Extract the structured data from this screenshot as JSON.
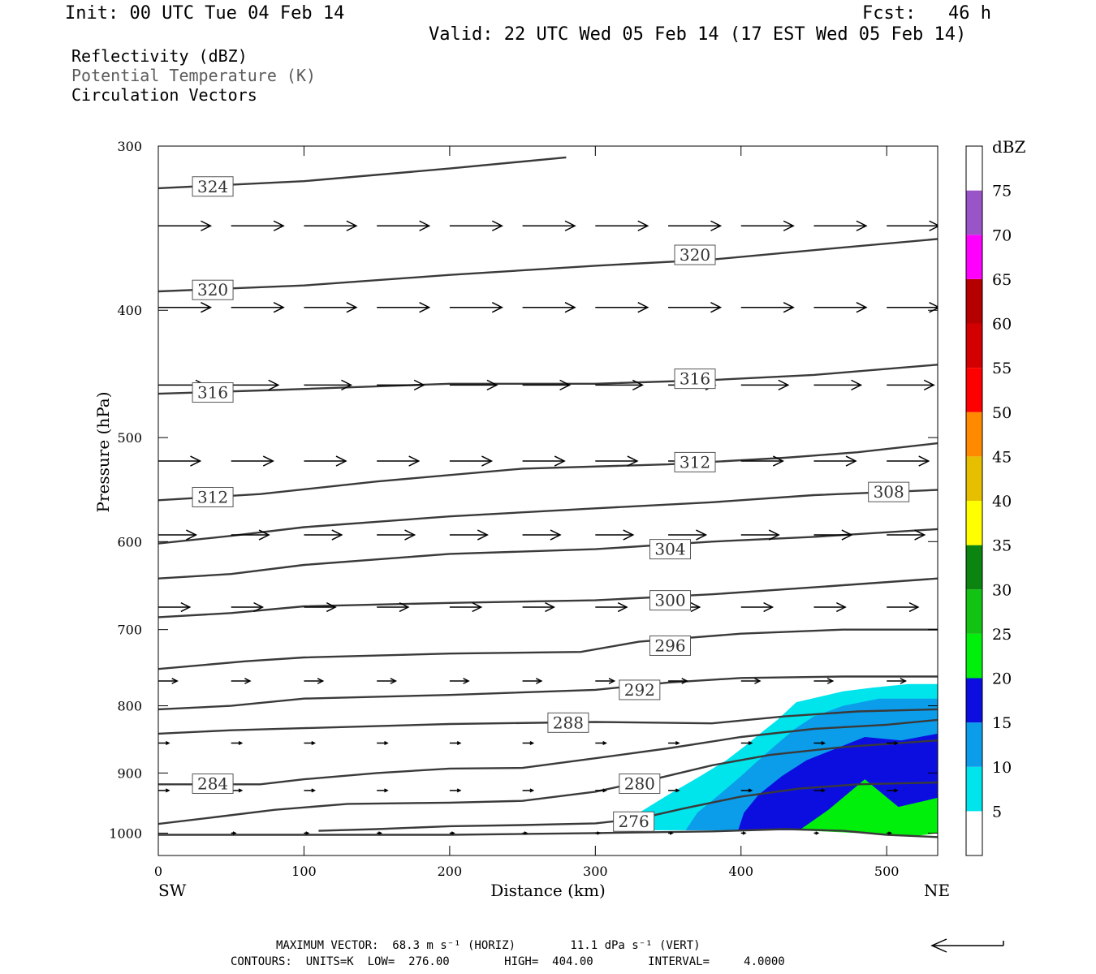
{
  "header": {
    "init": "Init: 00 UTC Tue 04 Feb 14",
    "fcst": "Fcst:   46 h",
    "valid": "Valid: 22 UTC Wed 05 Feb 14 (17 EST Wed 05 Feb 14)"
  },
  "fields": [
    "Reflectivity (dBZ)",
    "Potential Temperature (K)",
    "Circulation Vectors"
  ],
  "footer": {
    "line1": "MAXIMUM VECTOR:  68.3 m s⁻¹ (HORIZ)        11.1 dPa s⁻¹ (VERT)",
    "line2": "CONTOURS:  UNITS=K  LOW=  276.00        HIGH=  404.00        INTERVAL=     4.0000"
  },
  "chart_data": {
    "type": "cross-section",
    "xlabel": "Distance (km)",
    "ylabel": "Pressure (hPa)",
    "xlim": [
      0,
      535
    ],
    "ylim": [
      1040,
      300
    ],
    "y_scale": "log",
    "x_ticks": [
      0,
      100,
      200,
      300,
      400,
      500
    ],
    "y_ticks": [
      300,
      400,
      500,
      600,
      700,
      800,
      900,
      1000
    ],
    "end_labels": {
      "left": "SW",
      "right": "NE"
    },
    "colorbar": {
      "title": "dBZ",
      "ticks": [
        5,
        10,
        15,
        20,
        25,
        30,
        35,
        40,
        45,
        50,
        55,
        60,
        65,
        70,
        75
      ],
      "colors": [
        "#ffffff",
        "#00e4ec",
        "#0b9cea",
        "#0c0ee0",
        "#00f00c",
        "#13c313",
        "#0b850f",
        "#ffff00",
        "#e6c000",
        "#ff8a00",
        "#ff0000",
        "#d20000",
        "#b40000",
        "#ff00ff",
        "#9955c8",
        "#ffffff"
      ]
    },
    "reflectivity": [
      {
        "dbz": 5,
        "points": [
          [
            318,
            995
          ],
          [
            330,
            965
          ],
          [
            350,
            935
          ],
          [
            372,
            905
          ],
          [
            390,
            880
          ],
          [
            403,
            858
          ],
          [
            413,
            840
          ],
          [
            425,
            820
          ],
          [
            438,
            795
          ],
          [
            470,
            780
          ],
          [
            490,
            775
          ],
          [
            515,
            770
          ],
          [
            535,
            770
          ],
          [
            535,
            995
          ]
        ]
      },
      {
        "dbz": 10,
        "points": [
          [
            362,
            995
          ],
          [
            370,
            965
          ],
          [
            385,
            935
          ],
          [
            400,
            905
          ],
          [
            412,
            880
          ],
          [
            425,
            855
          ],
          [
            437,
            833
          ],
          [
            450,
            815
          ],
          [
            470,
            800
          ],
          [
            495,
            790
          ],
          [
            520,
            790
          ],
          [
            535,
            790
          ],
          [
            535,
            995
          ]
        ]
      },
      {
        "dbz": 15,
        "points": [
          [
            398,
            995
          ],
          [
            402,
            965
          ],
          [
            412,
            935
          ],
          [
            428,
            905
          ],
          [
            445,
            880
          ],
          [
            462,
            865
          ],
          [
            485,
            845
          ],
          [
            510,
            850
          ],
          [
            535,
            840
          ],
          [
            535,
            995
          ]
        ]
      },
      {
        "dbz": 20,
        "points": [
          [
            440,
            995
          ],
          [
            460,
            960
          ],
          [
            485,
            910
          ],
          [
            508,
            955
          ],
          [
            535,
            940
          ],
          [
            535,
            1000
          ],
          [
            520,
            1005
          ],
          [
            480,
            1000
          ]
        ]
      }
    ],
    "theta_contours": [
      {
        "value": 276,
        "points": [
          [
            0,
            1003
          ],
          [
            100,
            1003
          ],
          [
            200,
            1003
          ],
          [
            300,
            1000
          ],
          [
            380,
            997
          ],
          [
            430,
            993
          ],
          [
            470,
            996
          ],
          [
            500,
            1003
          ],
          [
            535,
            1007
          ]
        ]
      },
      {
        "value": 276,
        "points": [
          [
            110,
            996
          ],
          [
            150,
            993
          ],
          [
            200,
            988
          ],
          [
            250,
            986
          ],
          [
            300,
            983
          ],
          [
            330,
            975
          ],
          [
            360,
            958
          ],
          [
            400,
            938
          ],
          [
            440,
            925
          ],
          [
            480,
            918
          ],
          [
            535,
            915
          ]
        ]
      },
      {
        "value": 280,
        "points": [
          [
            0,
            984
          ],
          [
            40,
            972
          ],
          [
            80,
            960
          ],
          [
            130,
            950
          ],
          [
            200,
            948
          ],
          [
            250,
            945
          ],
          [
            300,
            930
          ],
          [
            340,
            910
          ],
          [
            380,
            888
          ],
          [
            420,
            872
          ],
          [
            470,
            860
          ],
          [
            535,
            850
          ]
        ]
      },
      {
        "value": 284,
        "points": [
          [
            0,
            918
          ],
          [
            70,
            918
          ],
          [
            100,
            910
          ],
          [
            150,
            900
          ],
          [
            200,
            893
          ],
          [
            250,
            892
          ],
          [
            300,
            877
          ],
          [
            350,
            862
          ],
          [
            400,
            845
          ],
          [
            450,
            833
          ],
          [
            500,
            827
          ],
          [
            535,
            820
          ]
        ]
      },
      {
        "value": 288,
        "points": [
          [
            0,
            840
          ],
          [
            50,
            835
          ],
          [
            100,
            832
          ],
          [
            200,
            826
          ],
          [
            300,
            823
          ],
          [
            380,
            825
          ],
          [
            430,
            815
          ],
          [
            480,
            808
          ],
          [
            535,
            805
          ]
        ]
      },
      {
        "value": 292,
        "points": [
          [
            0,
            805
          ],
          [
            50,
            800
          ],
          [
            100,
            790
          ],
          [
            200,
            785
          ],
          [
            300,
            778
          ],
          [
            350,
            768
          ],
          [
            400,
            762
          ],
          [
            470,
            760
          ],
          [
            535,
            760
          ]
        ]
      },
      {
        "value": 296,
        "points": [
          [
            0,
            750
          ],
          [
            60,
            740
          ],
          [
            100,
            735
          ],
          [
            200,
            730
          ],
          [
            290,
            728
          ],
          [
            330,
            715
          ],
          [
            400,
            705
          ],
          [
            470,
            700
          ],
          [
            535,
            700
          ]
        ]
      },
      {
        "value": 300,
        "points": [
          [
            0,
            685
          ],
          [
            50,
            680
          ],
          [
            100,
            672
          ],
          [
            200,
            668
          ],
          [
            300,
            665
          ],
          [
            380,
            658
          ],
          [
            450,
            650
          ],
          [
            535,
            640
          ]
        ]
      },
      {
        "value": 304,
        "points": [
          [
            0,
            640
          ],
          [
            50,
            635
          ],
          [
            100,
            625
          ],
          [
            200,
            613
          ],
          [
            300,
            608
          ],
          [
            380,
            600
          ],
          [
            450,
            595
          ],
          [
            535,
            587
          ]
        ]
      },
      {
        "value": 308,
        "points": [
          [
            0,
            602
          ],
          [
            50,
            594
          ],
          [
            100,
            585
          ],
          [
            200,
            574
          ],
          [
            300,
            566
          ],
          [
            380,
            560
          ],
          [
            450,
            553
          ],
          [
            535,
            548
          ]
        ]
      },
      {
        "value": 312,
        "points": [
          [
            0,
            558
          ],
          [
            70,
            552
          ],
          [
            150,
            540
          ],
          [
            250,
            528
          ],
          [
            350,
            524
          ],
          [
            430,
            518
          ],
          [
            480,
            513
          ],
          [
            535,
            505
          ]
        ]
      },
      {
        "value": 316,
        "points": [
          [
            0,
            463
          ],
          [
            80,
            460
          ],
          [
            200,
            455
          ],
          [
            300,
            455
          ],
          [
            380,
            452
          ],
          [
            450,
            448
          ],
          [
            535,
            440
          ]
        ]
      },
      {
        "value": 320,
        "points": [
          [
            0,
            387
          ],
          [
            100,
            383
          ],
          [
            200,
            376
          ],
          [
            300,
            370
          ],
          [
            380,
            366
          ],
          [
            450,
            360
          ],
          [
            535,
            353
          ]
        ]
      },
      {
        "value": 324,
        "points": [
          [
            0,
            323
          ],
          [
            100,
            319
          ],
          [
            200,
            312
          ],
          [
            280,
            306
          ]
        ]
      }
    ],
    "theta_labels": [
      {
        "text": "324",
        "x": 24,
        "p": 322
      },
      {
        "text": "320",
        "x": 355,
        "p": 363
      },
      {
        "text": "320",
        "x": 24,
        "p": 386
      },
      {
        "text": "316",
        "x": 355,
        "p": 451
      },
      {
        "text": "316",
        "x": 24,
        "p": 462
      },
      {
        "text": "312",
        "x": 355,
        "p": 522
      },
      {
        "text": "312",
        "x": 24,
        "p": 555
      },
      {
        "text": "308",
        "x": 488,
        "p": 550
      },
      {
        "text": "304",
        "x": 338,
        "p": 608
      },
      {
        "text": "300",
        "x": 338,
        "p": 665
      },
      {
        "text": "296",
        "x": 338,
        "p": 720
      },
      {
        "text": "292",
        "x": 317,
        "p": 778
      },
      {
        "text": "288",
        "x": 268,
        "p": 824
      },
      {
        "text": "284",
        "x": 24,
        "p": 917
      },
      {
        "text": "280",
        "x": 317,
        "p": 917
      },
      {
        "text": "276",
        "x": 313,
        "p": 980
      }
    ],
    "vector_rows": [
      {
        "p": 345,
        "xs": [
          0,
          50,
          100,
          150,
          200,
          250,
          300,
          350,
          400,
          450,
          500
        ],
        "u": 50,
        "w": 0
      },
      {
        "p": 398,
        "xs": [
          0,
          50,
          100,
          150,
          200,
          250,
          300,
          350,
          400,
          450,
          500
        ],
        "u": 50,
        "w": 0
      },
      {
        "p": 456,
        "xs": [
          0,
          50,
          100,
          150,
          200,
          250,
          300,
          350,
          400,
          450,
          500
        ],
        "u": 45,
        "w": 0
      },
      {
        "p": 521,
        "xs": [
          0,
          50,
          100,
          150,
          200,
          250,
          300,
          350,
          400,
          450,
          500
        ],
        "u": 40,
        "w": 0
      },
      {
        "p": 593,
        "xs": [
          0,
          50,
          100,
          150,
          200,
          250,
          300,
          350,
          400,
          450,
          500
        ],
        "u": 36,
        "w": 0
      },
      {
        "p": 673,
        "xs": [
          0,
          50,
          100,
          150,
          200,
          250,
          300,
          350,
          400,
          450,
          500
        ],
        "u": 30,
        "w": 0
      },
      {
        "p": 766,
        "xs": [
          0,
          50,
          100,
          150,
          200,
          250,
          300,
          350,
          400,
          450,
          500
        ],
        "u": 18,
        "w": 0
      },
      {
        "p": 854,
        "xs": [
          0,
          50,
          100,
          150,
          200,
          250,
          300,
          350,
          400,
          450,
          500
        ],
        "u": 10,
        "w": 0
      },
      {
        "p": 928,
        "xs": [
          0,
          50,
          100,
          150,
          200,
          250,
          300,
          350,
          400,
          450,
          500
        ],
        "u": 10,
        "w": 0
      },
      {
        "p": 1000,
        "xs": [
          50,
          100,
          150,
          200,
          250,
          300,
          350,
          400,
          450,
          500
        ],
        "u": 4,
        "w": 0
      }
    ],
    "reference_vector": {
      "u": 68.3,
      "unit": "m s-1"
    }
  }
}
